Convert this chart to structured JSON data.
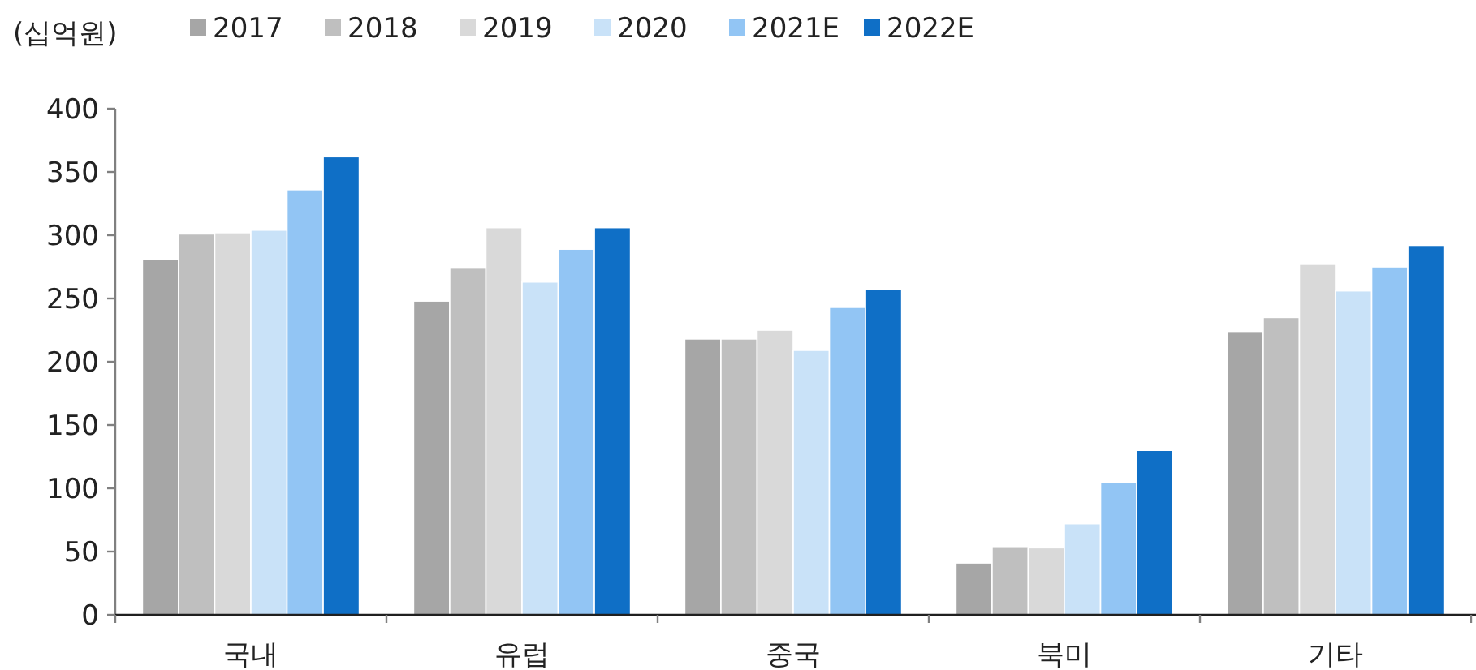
{
  "chart_data": {
    "type": "bar",
    "ylabel": "(십억원)",
    "categories": [
      "국내",
      "유럽",
      "중국",
      "북미",
      "기타"
    ],
    "series": [
      {
        "name": "2017",
        "color": "#a6a6a6",
        "values": [
          281,
          248,
          218,
          41,
          224
        ]
      },
      {
        "name": "2018",
        "color": "#bfbfbf",
        "values": [
          301,
          274,
          218,
          54,
          235
        ]
      },
      {
        "name": "2019",
        "color": "#d9d9d9",
        "values": [
          302,
          306,
          225,
          53,
          277
        ]
      },
      {
        "name": "2020",
        "color": "#c9e2f8",
        "values": [
          304,
          263,
          209,
          72,
          256
        ]
      },
      {
        "name": "2021E",
        "color": "#92c5f4",
        "values": [
          336,
          289,
          243,
          105,
          275
        ]
      },
      {
        "name": "2022E",
        "color": "#0f6fc6",
        "values": [
          362,
          306,
          257,
          130,
          292
        ]
      }
    ],
    "ylim": [
      0,
      400
    ],
    "yticks": [
      0,
      50,
      100,
      150,
      200,
      250,
      300,
      350,
      400
    ],
    "legend": "top"
  }
}
